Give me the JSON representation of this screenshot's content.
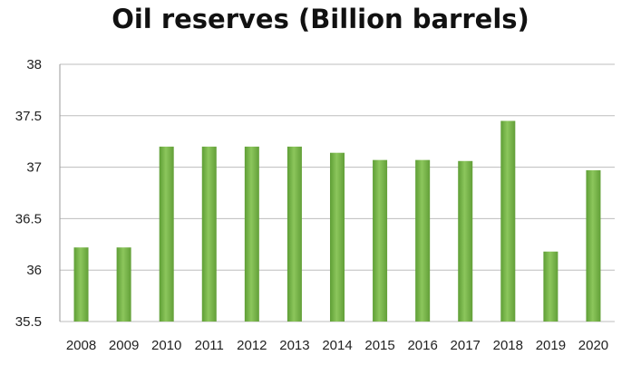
{
  "chart_data": {
    "type": "bar",
    "title": "Oil reserves (Billion barrels)",
    "categories": [
      "2008",
      "2009",
      "2010",
      "2011",
      "2012",
      "2013",
      "2014",
      "2015",
      "2016",
      "2017",
      "2018",
      "2019",
      "2020"
    ],
    "values": [
      36.22,
      36.22,
      37.2,
      37.2,
      37.2,
      37.2,
      37.14,
      37.07,
      37.07,
      37.06,
      37.45,
      36.18,
      36.97
    ],
    "ylim": [
      35.5,
      38
    ],
    "yticks": [
      35.5,
      36,
      36.5,
      37,
      37.5,
      38
    ],
    "ytick_labels": [
      "35.5",
      "36",
      "36.5",
      "37",
      "37.5",
      "38"
    ],
    "grid": true,
    "legend": "none",
    "bar_color": "#79b94b"
  }
}
